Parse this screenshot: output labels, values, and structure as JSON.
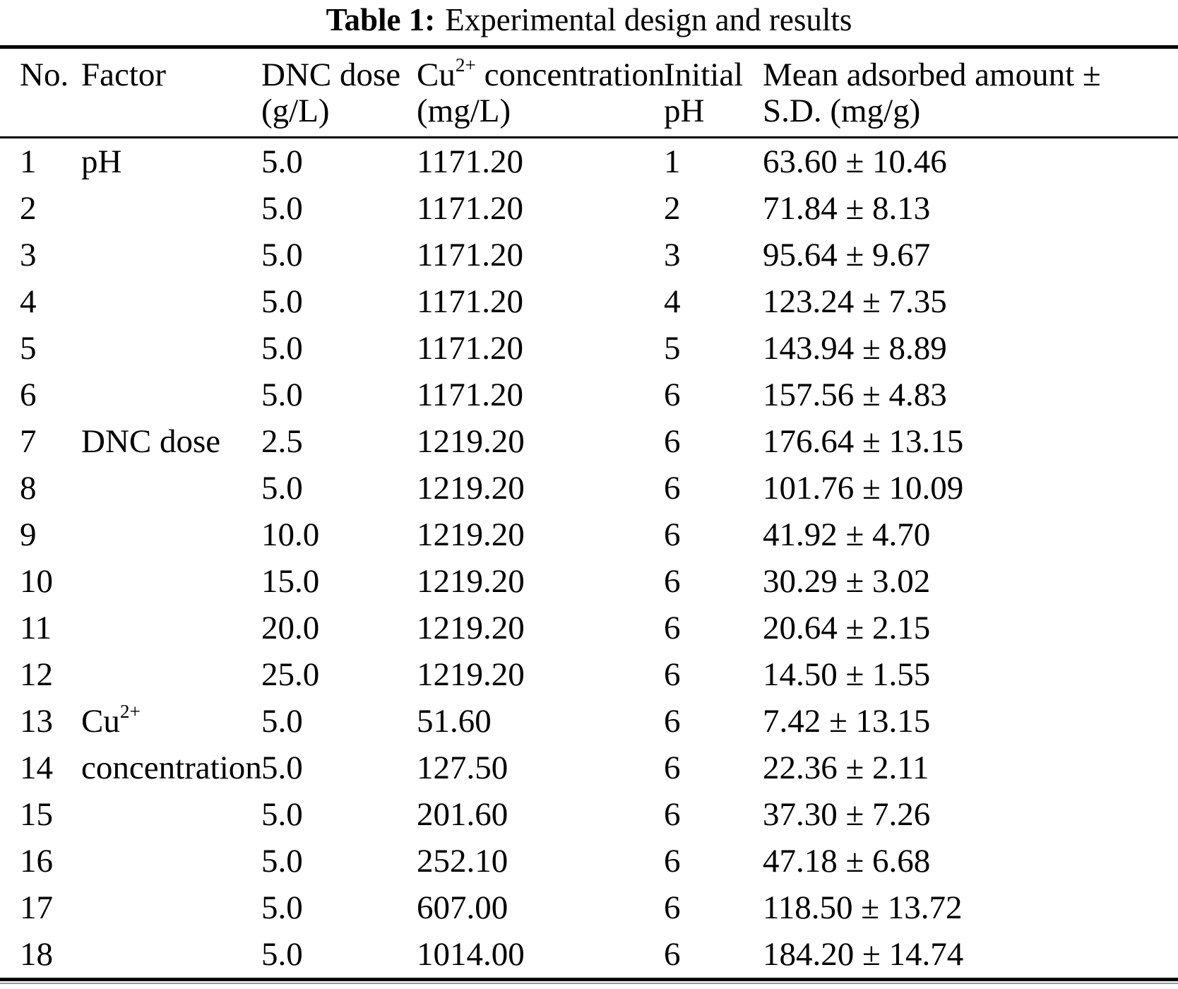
{
  "title": {
    "label": "Table 1:",
    "text": "Experimental design and results"
  },
  "table": {
    "headers": [
      {
        "line1": "No.",
        "line2": ""
      },
      {
        "line1": "Factor",
        "line2": ""
      },
      {
        "line1": "DNC dose",
        "line2": "(g/L)"
      },
      {
        "base": "Cu",
        "sup": "2+",
        "rest": " concentration",
        "line2": "(mg/L)"
      },
      {
        "line1": "Initial",
        "line2": "pH"
      },
      {
        "line1": "Mean adsorbed amount ±",
        "line2": "S.D. (mg/g)"
      }
    ],
    "rows": [
      {
        "no": "1",
        "factor": {
          "text": "pH"
        },
        "dose": "5.0",
        "conc": "1171.20",
        "ph": "1",
        "mean": "63.60 ± 10.46"
      },
      {
        "no": "2",
        "factor": null,
        "dose": "5.0",
        "conc": "1171.20",
        "ph": "2",
        "mean": "71.84 ± 8.13"
      },
      {
        "no": "3",
        "factor": null,
        "dose": "5.0",
        "conc": "1171.20",
        "ph": "3",
        "mean": "95.64 ± 9.67"
      },
      {
        "no": "4",
        "factor": null,
        "dose": "5.0",
        "conc": "1171.20",
        "ph": "4",
        "mean": "123.24 ± 7.35"
      },
      {
        "no": "5",
        "factor": null,
        "dose": "5.0",
        "conc": "1171.20",
        "ph": "5",
        "mean": "143.94 ± 8.89"
      },
      {
        "no": "6",
        "factor": null,
        "dose": "5.0",
        "conc": "1171.20",
        "ph": "6",
        "mean": "157.56 ± 4.83"
      },
      {
        "no": "7",
        "factor": {
          "text": "DNC dose"
        },
        "dose": "2.5",
        "conc": "1219.20",
        "ph": "6",
        "mean": "176.64 ± 13.15"
      },
      {
        "no": "8",
        "factor": null,
        "dose": "5.0",
        "conc": "1219.20",
        "ph": "6",
        "mean": "101.76 ± 10.09"
      },
      {
        "no": "9",
        "factor": null,
        "dose": "10.0",
        "conc": "1219.20",
        "ph": "6",
        "mean": "41.92 ± 4.70"
      },
      {
        "no": "10",
        "factor": null,
        "dose": "15.0",
        "conc": "1219.20",
        "ph": "6",
        "mean": "30.29 ± 3.02"
      },
      {
        "no": "11",
        "factor": null,
        "dose": "20.0",
        "conc": "1219.20",
        "ph": "6",
        "mean": "20.64 ± 2.15"
      },
      {
        "no": "12",
        "factor": null,
        "dose": "25.0",
        "conc": "1219.20",
        "ph": "6",
        "mean": "14.50 ± 1.55"
      },
      {
        "no": "13",
        "factor": {
          "base": "Cu",
          "sup": "2+",
          "line2": "concentration",
          "rowspan": 2
        },
        "dose": "5.0",
        "conc": "51.60",
        "ph": "6",
        "mean": "7.42 ± 13.15"
      },
      {
        "no": "14",
        "factor": "covered",
        "dose": "5.0",
        "conc": "127.50",
        "ph": "6",
        "mean": "22.36 ± 2.11"
      },
      {
        "no": "15",
        "factor": null,
        "dose": "5.0",
        "conc": "201.60",
        "ph": "6",
        "mean": "37.30 ± 7.26"
      },
      {
        "no": "16",
        "factor": null,
        "dose": "5.0",
        "conc": "252.10",
        "ph": "6",
        "mean": "47.18 ± 6.68"
      },
      {
        "no": "17",
        "factor": null,
        "dose": "5.0",
        "conc": "607.00",
        "ph": "6",
        "mean": "118.50 ± 13.72"
      },
      {
        "no": "18",
        "factor": null,
        "dose": "5.0",
        "conc": "1014.00",
        "ph": "6",
        "mean": "184.20 ± 14.74"
      }
    ]
  }
}
